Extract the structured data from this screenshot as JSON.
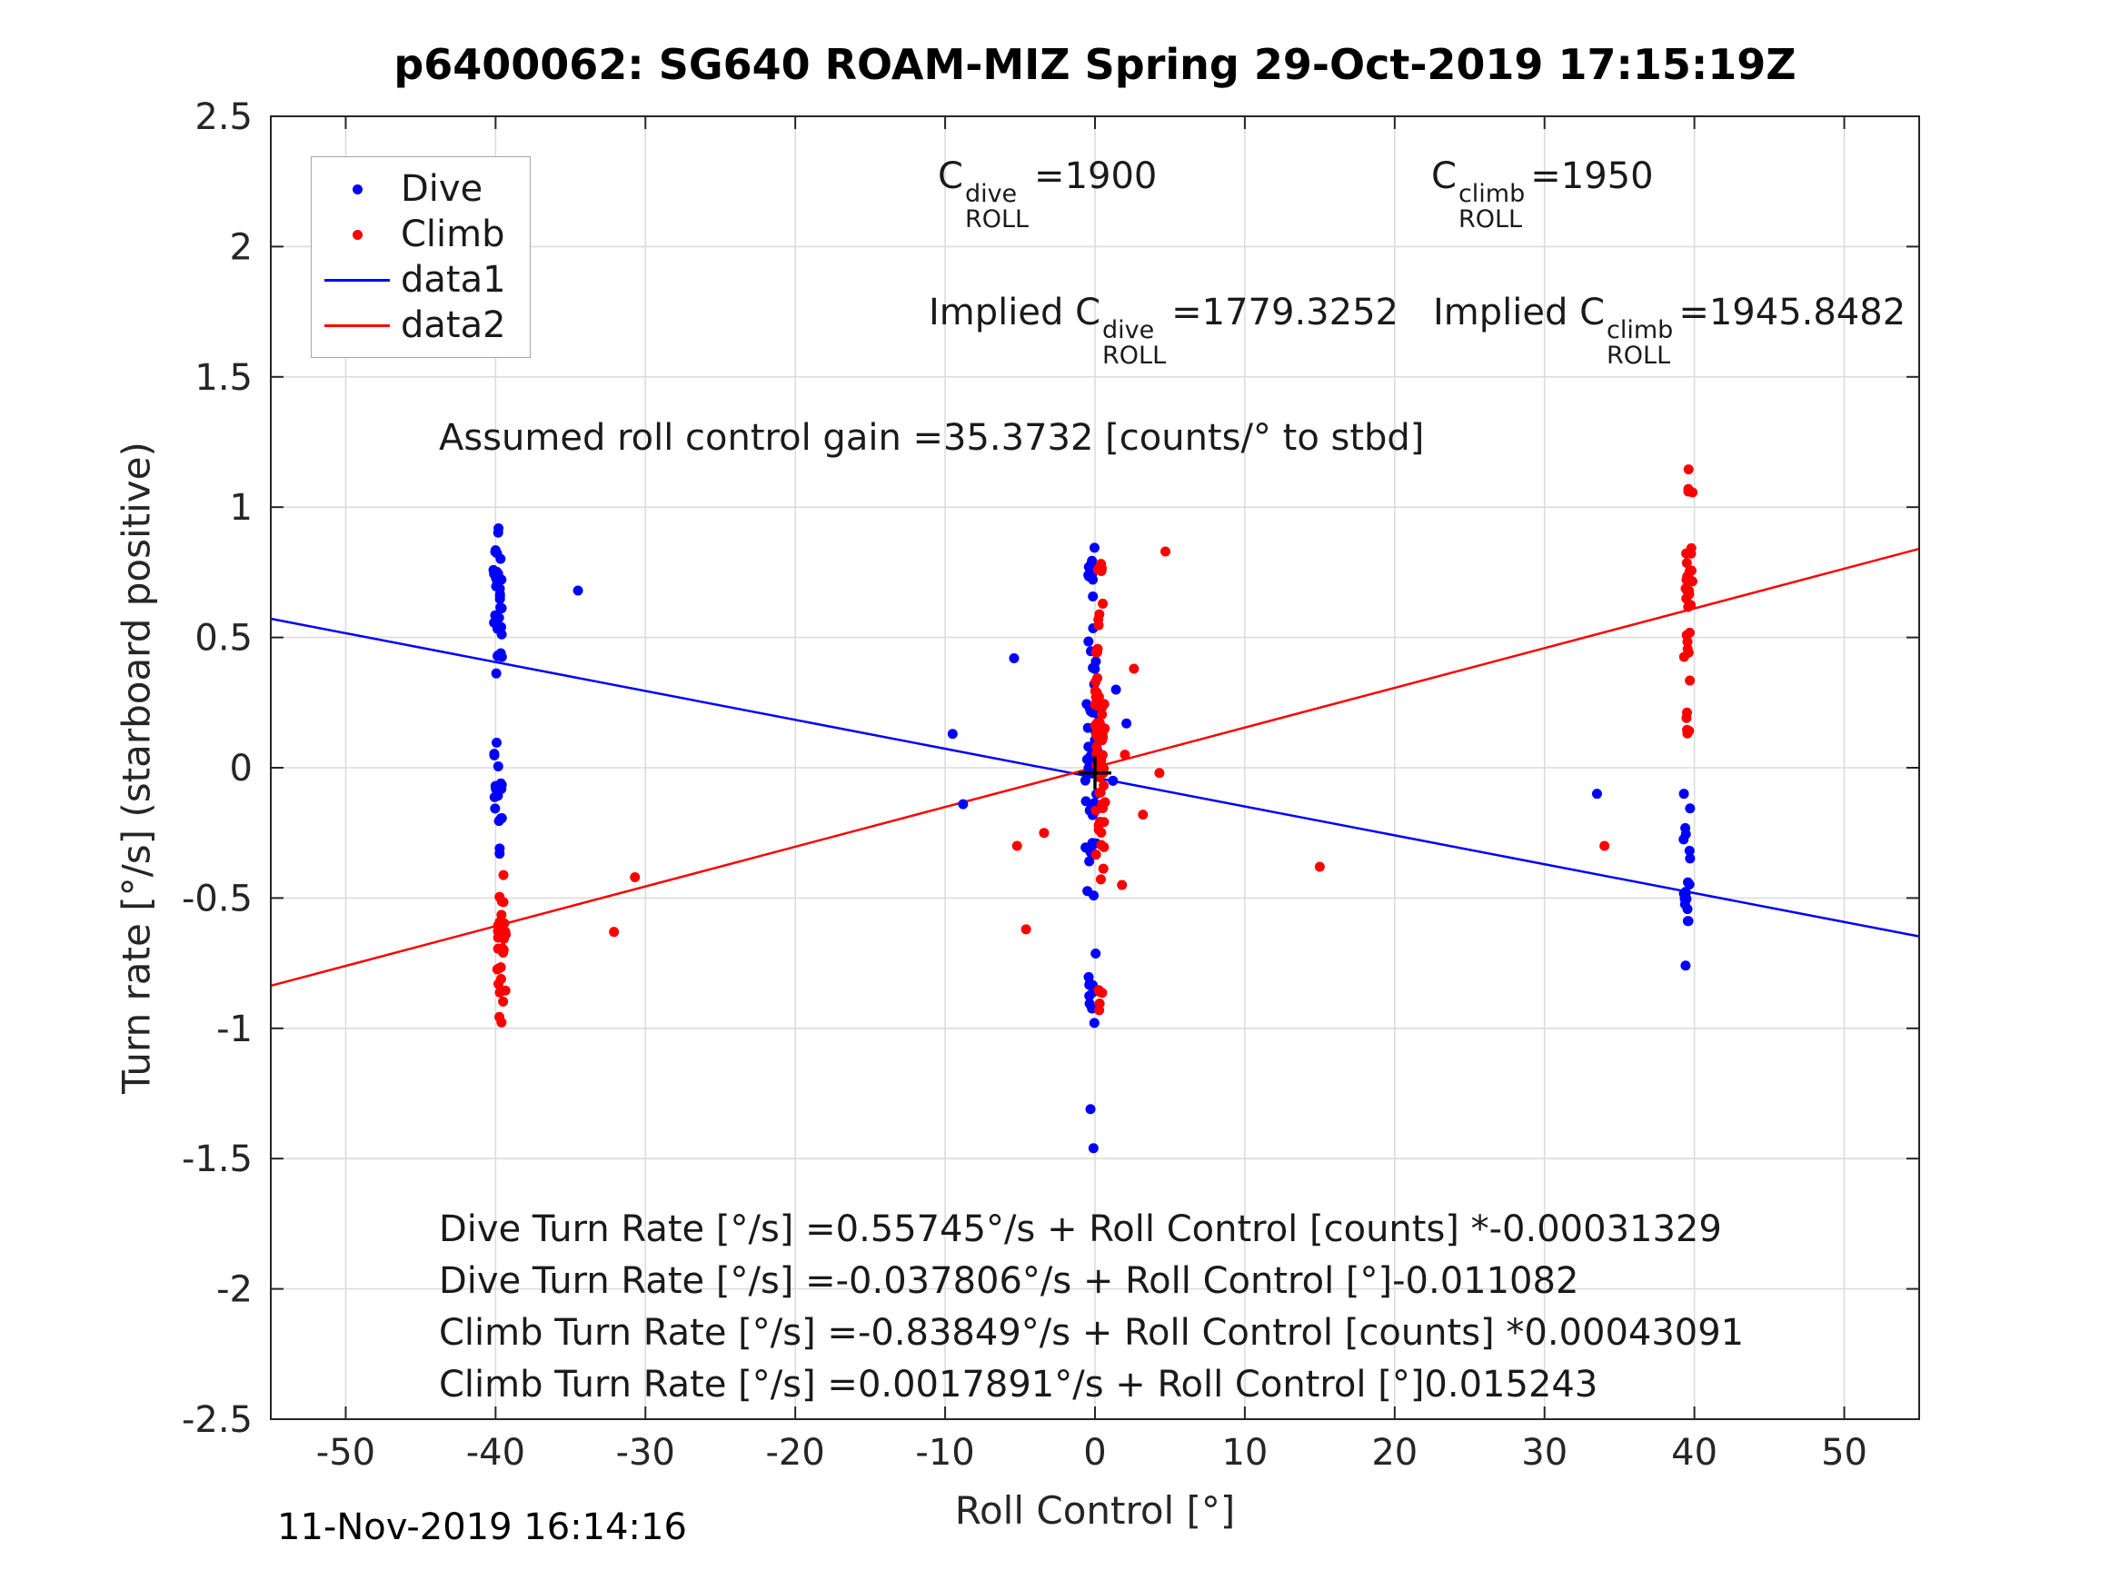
{
  "title": "p6400062: SG640 ROAM-MIZ Spring 29-Oct-2019 17:15:19Z",
  "timestamp": "11-Nov-2019 16:14:16",
  "annotations": {
    "c_dive": {
      "base": "C",
      "sup": "dive",
      "sub": "ROLL",
      "eq": "=1900"
    },
    "c_climb": {
      "base": "C",
      "sup": "climb",
      "sub": "ROLL",
      "eq": "=1950"
    },
    "implied_dive": {
      "prefix": "Implied ",
      "base": "C",
      "sup": "dive",
      "sub": "ROLL",
      "eq": "=1779.3252"
    },
    "implied_climb": {
      "prefix": "Implied ",
      "base": "C",
      "sup": "climb",
      "sub": "ROLL",
      "eq": "=1945.8482"
    },
    "gain": "Assumed roll control gain =35.3732 [counts/° to stbd]",
    "equations": [
      "Dive Turn Rate [°/s] =0.55745°/s + Roll Control [counts] *-0.00031329",
      "Dive Turn Rate [°/s] =-0.037806°/s + Roll Control [°]-0.011082",
      "Climb Turn Rate [°/s] =-0.83849°/s + Roll Control [counts] *0.00043091",
      "Climb Turn Rate [°/s] =0.0017891°/s + Roll Control [°]0.015243"
    ]
  },
  "chart_data": {
    "type": "scatter",
    "title": "p6400062: SG640 ROAM-MIZ Spring 29-Oct-2019 17:15:19Z",
    "xlabel": "Roll Control [°]",
    "ylabel": "Turn rate [°/s] (starboard positive)",
    "xlim": [
      -55,
      55
    ],
    "ylim": [
      -2.5,
      2.5
    ],
    "xticks": [
      -50,
      -40,
      -30,
      -20,
      -10,
      0,
      10,
      20,
      30,
      40,
      50
    ],
    "yticks": [
      -2.5,
      -2,
      -1.5,
      -1,
      -0.5,
      0,
      0.5,
      1,
      1.5,
      2,
      2.5
    ],
    "grid": true,
    "style": {
      "axis_color": "#262626",
      "grid_color": "#dcdcdc"
    },
    "legend": {
      "position": "top-left",
      "entries": [
        {
          "label": "Dive",
          "color": "#0000ff",
          "marker": "dot"
        },
        {
          "label": "Climb",
          "color": "#ff0000",
          "marker": "dot"
        },
        {
          "label": "data1",
          "color": "#0000ff",
          "marker": "line"
        },
        {
          "label": "data2",
          "color": "#ff0000",
          "marker": "line"
        }
      ]
    },
    "fit_lines": [
      {
        "name": "data1",
        "color": "#0000ff",
        "intercept": -0.037806,
        "slope": -0.011082
      },
      {
        "name": "data2",
        "color": "#ff0000",
        "intercept": 0.0017891,
        "slope": 0.015243
      }
    ],
    "scatter": [
      {
        "name": "Dive",
        "color": "#0000ff",
        "clusters": [
          {
            "x": -39.85,
            "x_jitter": 0.6,
            "y_range": [
              0.28,
              1.03
            ],
            "count": 34
          },
          {
            "x": -39.85,
            "x_jitter": 0.6,
            "y_range": [
              -0.45,
              0.28
            ],
            "count": 20
          },
          {
            "x": -0.25,
            "x_jitter": 0.8,
            "y_range": [
              -0.6,
              0.62
            ],
            "count": 48
          },
          {
            "x": -0.2,
            "x_jitter": 0.5,
            "y_range": [
              0.6,
              0.87
            ],
            "count": 9
          },
          {
            "x": -0.2,
            "x_jitter": 0.5,
            "y_range": [
              -1.12,
              -0.6
            ],
            "count": 10
          },
          {
            "x": 39.5,
            "x_jitter": 0.5,
            "y_range": [
              -0.87,
              -0.12
            ],
            "count": 18
          }
        ],
        "points": [
          [
            -34.5,
            0.68
          ],
          [
            -9.5,
            0.13
          ],
          [
            -8.8,
            -0.14
          ],
          [
            -5.4,
            0.42
          ],
          [
            33.5,
            -0.1
          ],
          [
            -0.3,
            -1.31
          ],
          [
            -0.1,
            -1.46
          ],
          [
            1.4,
            0.3
          ],
          [
            2.1,
            0.17
          ],
          [
            1.2,
            -0.05
          ],
          [
            39.3,
            -0.1
          ]
        ]
      },
      {
        "name": "Climb",
        "color": "#ff0000",
        "clusters": [
          {
            "x": -39.6,
            "x_jitter": 0.6,
            "y_range": [
              -1.1,
              -0.38
            ],
            "count": 30
          },
          {
            "x": 0.35,
            "x_jitter": 0.7,
            "y_range": [
              -0.78,
              0.72
            ],
            "count": 55
          },
          {
            "x": 0.3,
            "x_jitter": 0.4,
            "y_range": [
              0.72,
              0.87
            ],
            "count": 5
          },
          {
            "x": 0.4,
            "x_jitter": 0.4,
            "y_range": [
              -1.02,
              -0.78
            ],
            "count": 5
          },
          {
            "x": 39.6,
            "x_jitter": 0.6,
            "y_range": [
              0.3,
              1.02
            ],
            "count": 26
          },
          {
            "x": 39.7,
            "x_jitter": 0.4,
            "y_range": [
              1.02,
              1.15
            ],
            "count": 4
          },
          {
            "x": 39.5,
            "x_jitter": 0.4,
            "y_range": [
              -0.05,
              0.3
            ],
            "count": 5
          }
        ],
        "points": [
          [
            -30.7,
            -0.42
          ],
          [
            -32.1,
            -0.63
          ],
          [
            15,
            -0.38
          ],
          [
            4.7,
            0.83
          ],
          [
            2.6,
            0.38
          ],
          [
            3.2,
            -0.18
          ],
          [
            -4.6,
            -0.62
          ],
          [
            -5.2,
            -0.3
          ],
          [
            -3.4,
            -0.25
          ],
          [
            34,
            -0.3
          ],
          [
            2.0,
            0.05
          ],
          [
            4.3,
            -0.02
          ],
          [
            1.8,
            -0.45
          ]
        ]
      }
    ],
    "origin_marker": {
      "x": 0,
      "y": -0.02,
      "color": "#000000",
      "shape": "plus"
    }
  }
}
